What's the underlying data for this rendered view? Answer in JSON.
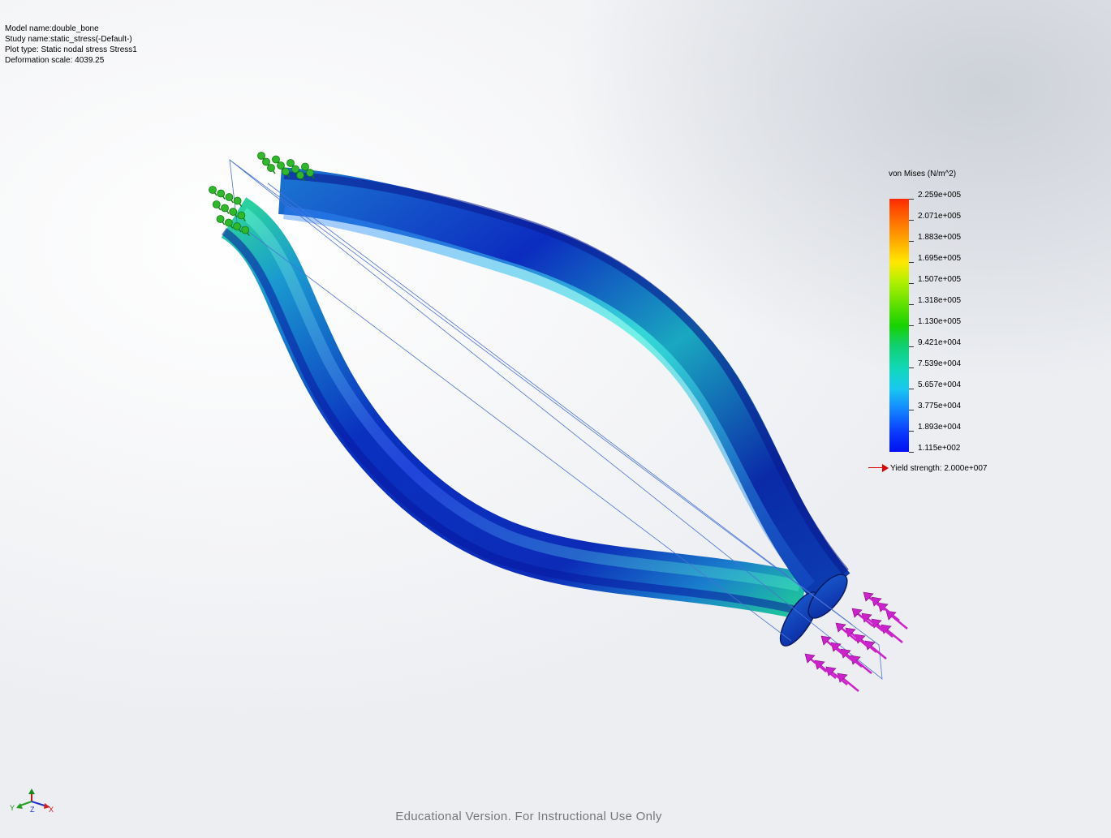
{
  "info": {
    "model_name": "Model name:double_bone",
    "study_name": "Study name:static_stress(-Default-)",
    "plot_type": "Plot type: Static nodal stress Stress1",
    "deformation_scale": "Deformation scale: 4039.25"
  },
  "legend": {
    "title": "von Mises (N/m^2)",
    "values": [
      "2.259e+005",
      "2.071e+005",
      "1.883e+005",
      "1.695e+005",
      "1.507e+005",
      "1.318e+005",
      "1.130e+005",
      "9.421e+004",
      "7.539e+004",
      "5.657e+004",
      "3.775e+004",
      "1.893e+004",
      "1.115e+002"
    ],
    "yield_label": "Yield strength: 2.000e+007",
    "yield_color": "#e00000"
  },
  "triad": {
    "y": "Y",
    "z": "Z",
    "x": "X"
  },
  "watermark": "Educational Version. For Instructional Use Only",
  "colors": {
    "fixture": "#2fb82a",
    "load": "#cc22cc",
    "bone_low": "#0a1aa8",
    "bone_mid": "#20c8c0",
    "outline": "#4a72d8"
  }
}
